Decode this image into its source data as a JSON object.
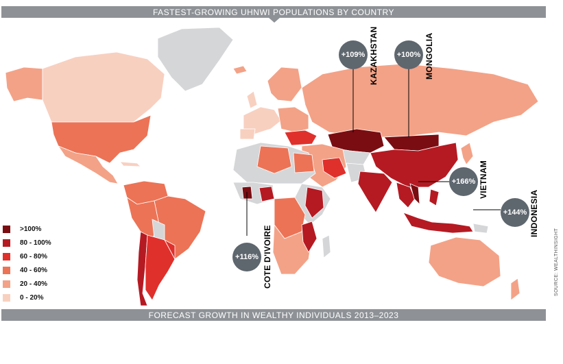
{
  "header": {
    "title": "FASTEST-GROWING UHNWI POPULATIONS BY COUNTRY"
  },
  "footer": {
    "title": "FORECAST GROWTH IN WEALTHY INDIVIDUALS 2013–2023"
  },
  "legend": [
    {
      "label": ">100%",
      "color": "#7a0d12"
    },
    {
      "label": "80 - 100%",
      "color": "#b51a22"
    },
    {
      "label": "60 - 80%",
      "color": "#e0302c"
    },
    {
      "label": "40 - 60%",
      "color": "#ec7356"
    },
    {
      "label": "20 - 40%",
      "color": "#f3a287"
    },
    {
      "label": "0 - 20%",
      "color": "#f8d0c0"
    }
  ],
  "no_data_color": "#d5d6d8",
  "callouts": {
    "kazakhstan": {
      "value": "+109%",
      "country": "KAZAKHSTAN"
    },
    "mongolia": {
      "value": "+100%",
      "country": "MONGOLIA"
    },
    "vietnam": {
      "value": "+166%",
      "country": "VIETNAM"
    },
    "indonesia": {
      "value": "+144%",
      "country": "INDONESIA"
    },
    "cote_divoire": {
      "value": "+116%",
      "country": "COTE D'IVOIRE"
    }
  },
  "source": "SOURCE: WEALTHINSIGHT"
}
